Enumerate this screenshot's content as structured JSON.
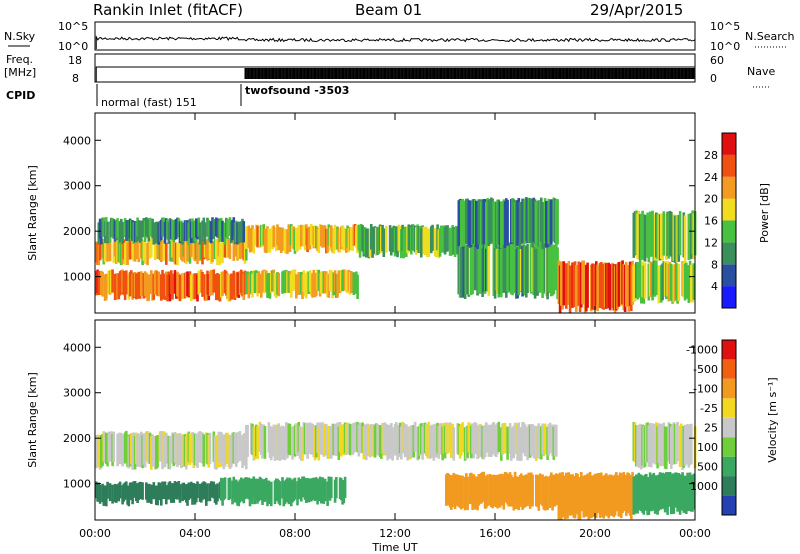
{
  "header": {
    "station": "Rankin Inlet (fitACF)",
    "beam": "Beam 01",
    "date": "29/Apr/2015"
  },
  "top_panels": {
    "nsky_label": "N.Sky",
    "nsky_ticks": [
      "10^5",
      "10^0"
    ],
    "nsearch_label": "N.Search",
    "nsearch_ticks": [
      "10^5",
      "10^0"
    ],
    "freq_label": "Freq.",
    "freq_unit": "[MHz]",
    "freq_ticks": [
      "18",
      "8"
    ],
    "nave_label": "Nave",
    "nave_ticks": [
      "60",
      "0"
    ],
    "cpid_label": "CPID",
    "cpid_modes": [
      {
        "name": "normal (fast) 151",
        "start_hour": 0,
        "end_hour": 6
      },
      {
        "name": "twofsound -3503",
        "start_hour": 6,
        "end_hour": 24
      }
    ]
  },
  "chart_data": [
    {
      "type": "heatmap",
      "panel": "power",
      "ylabel": "Slant Range [km]",
      "ylim": [
        200,
        4600
      ],
      "y_ticks": [
        "1000",
        "2000",
        "3000",
        "4000"
      ],
      "xlim": [
        0,
        24
      ],
      "colorbar_label": "Power [dB]",
      "colorbar_ticks": [
        "4",
        "8",
        "12",
        "16",
        "20",
        "24",
        "28"
      ],
      "colorbar_colors": [
        "#1a1aff",
        "#2b4fa0",
        "#3a8f5a",
        "#48c040",
        "#f2dc20",
        "#f39a20",
        "#f05010",
        "#e01010"
      ],
      "bands": [
        {
          "t0": 0.0,
          "t1": 6.0,
          "r0": 550,
          "r1": 1100,
          "value": 24
        },
        {
          "t0": 0.0,
          "t1": 6.0,
          "r0": 1350,
          "r1": 1800,
          "value": 20
        },
        {
          "t0": 0.0,
          "t1": 6.0,
          "r0": 1800,
          "r1": 2250,
          "value": 10
        },
        {
          "t0": 6.0,
          "t1": 10.5,
          "r0": 600,
          "r1": 1100,
          "value": 18
        },
        {
          "t0": 6.0,
          "t1": 10.5,
          "r0": 1600,
          "r1": 2100,
          "value": 20
        },
        {
          "t0": 10.5,
          "t1": 14.5,
          "r0": 1500,
          "r1": 2100,
          "value": 14
        },
        {
          "t0": 14.5,
          "t1": 18.5,
          "r0": 600,
          "r1": 1700,
          "value": 12
        },
        {
          "t0": 14.5,
          "t1": 18.5,
          "r0": 1700,
          "r1": 2700,
          "value": 10
        },
        {
          "t0": 18.5,
          "t1": 21.5,
          "r0": 300,
          "r1": 1300,
          "value": 26
        },
        {
          "t0": 21.5,
          "t1": 24.0,
          "r0": 500,
          "r1": 1300,
          "value": 16
        },
        {
          "t0": 21.5,
          "t1": 24.0,
          "r0": 1400,
          "r1": 2400,
          "value": 14
        }
      ]
    },
    {
      "type": "heatmap",
      "panel": "velocity",
      "ylabel": "Slant Range [km]",
      "ylim": [
        200,
        4600
      ],
      "y_ticks": [
        "1000",
        "2000",
        "3000",
        "4000"
      ],
      "xlim": [
        0,
        24
      ],
      "xlabel": "Time UT",
      "x_ticks": [
        "00:00",
        "04:00",
        "08:00",
        "12:00",
        "16:00",
        "20:00",
        "00:00"
      ],
      "colorbar_label": "Velocity [m s⁻¹]",
      "colorbar_ticks": [
        "1000",
        "500",
        "100",
        "25",
        "-25",
        "-100",
        "-500",
        "-1000"
      ],
      "colorbar_colors": [
        "#2540b0",
        "#2e7d5a",
        "#3aa860",
        "#6fcf3a",
        "#c8c8c8",
        "#f2d820",
        "#f29a20",
        "#f06010",
        "#e01010"
      ],
      "bands": [
        {
          "t0": 0.0,
          "t1": 5.0,
          "r0": 600,
          "r1": 1000,
          "value": 800
        },
        {
          "t0": 0.0,
          "t1": 6.0,
          "r0": 1400,
          "r1": 2100,
          "value": 0
        },
        {
          "t0": 5.0,
          "t1": 10.0,
          "r0": 600,
          "r1": 1100,
          "value": 300
        },
        {
          "t0": 6.0,
          "t1": 18.5,
          "r0": 1600,
          "r1": 2300,
          "value": 0
        },
        {
          "t0": 14.0,
          "t1": 18.5,
          "r0": 500,
          "r1": 1200,
          "value": -150
        },
        {
          "t0": 18.5,
          "t1": 21.5,
          "r0": 300,
          "r1": 1200,
          "value": -300
        },
        {
          "t0": 21.5,
          "t1": 24.0,
          "r0": 400,
          "r1": 1200,
          "value": 150
        },
        {
          "t0": 21.5,
          "t1": 24.0,
          "r0": 1400,
          "r1": 2300,
          "value": 0
        }
      ]
    }
  ]
}
